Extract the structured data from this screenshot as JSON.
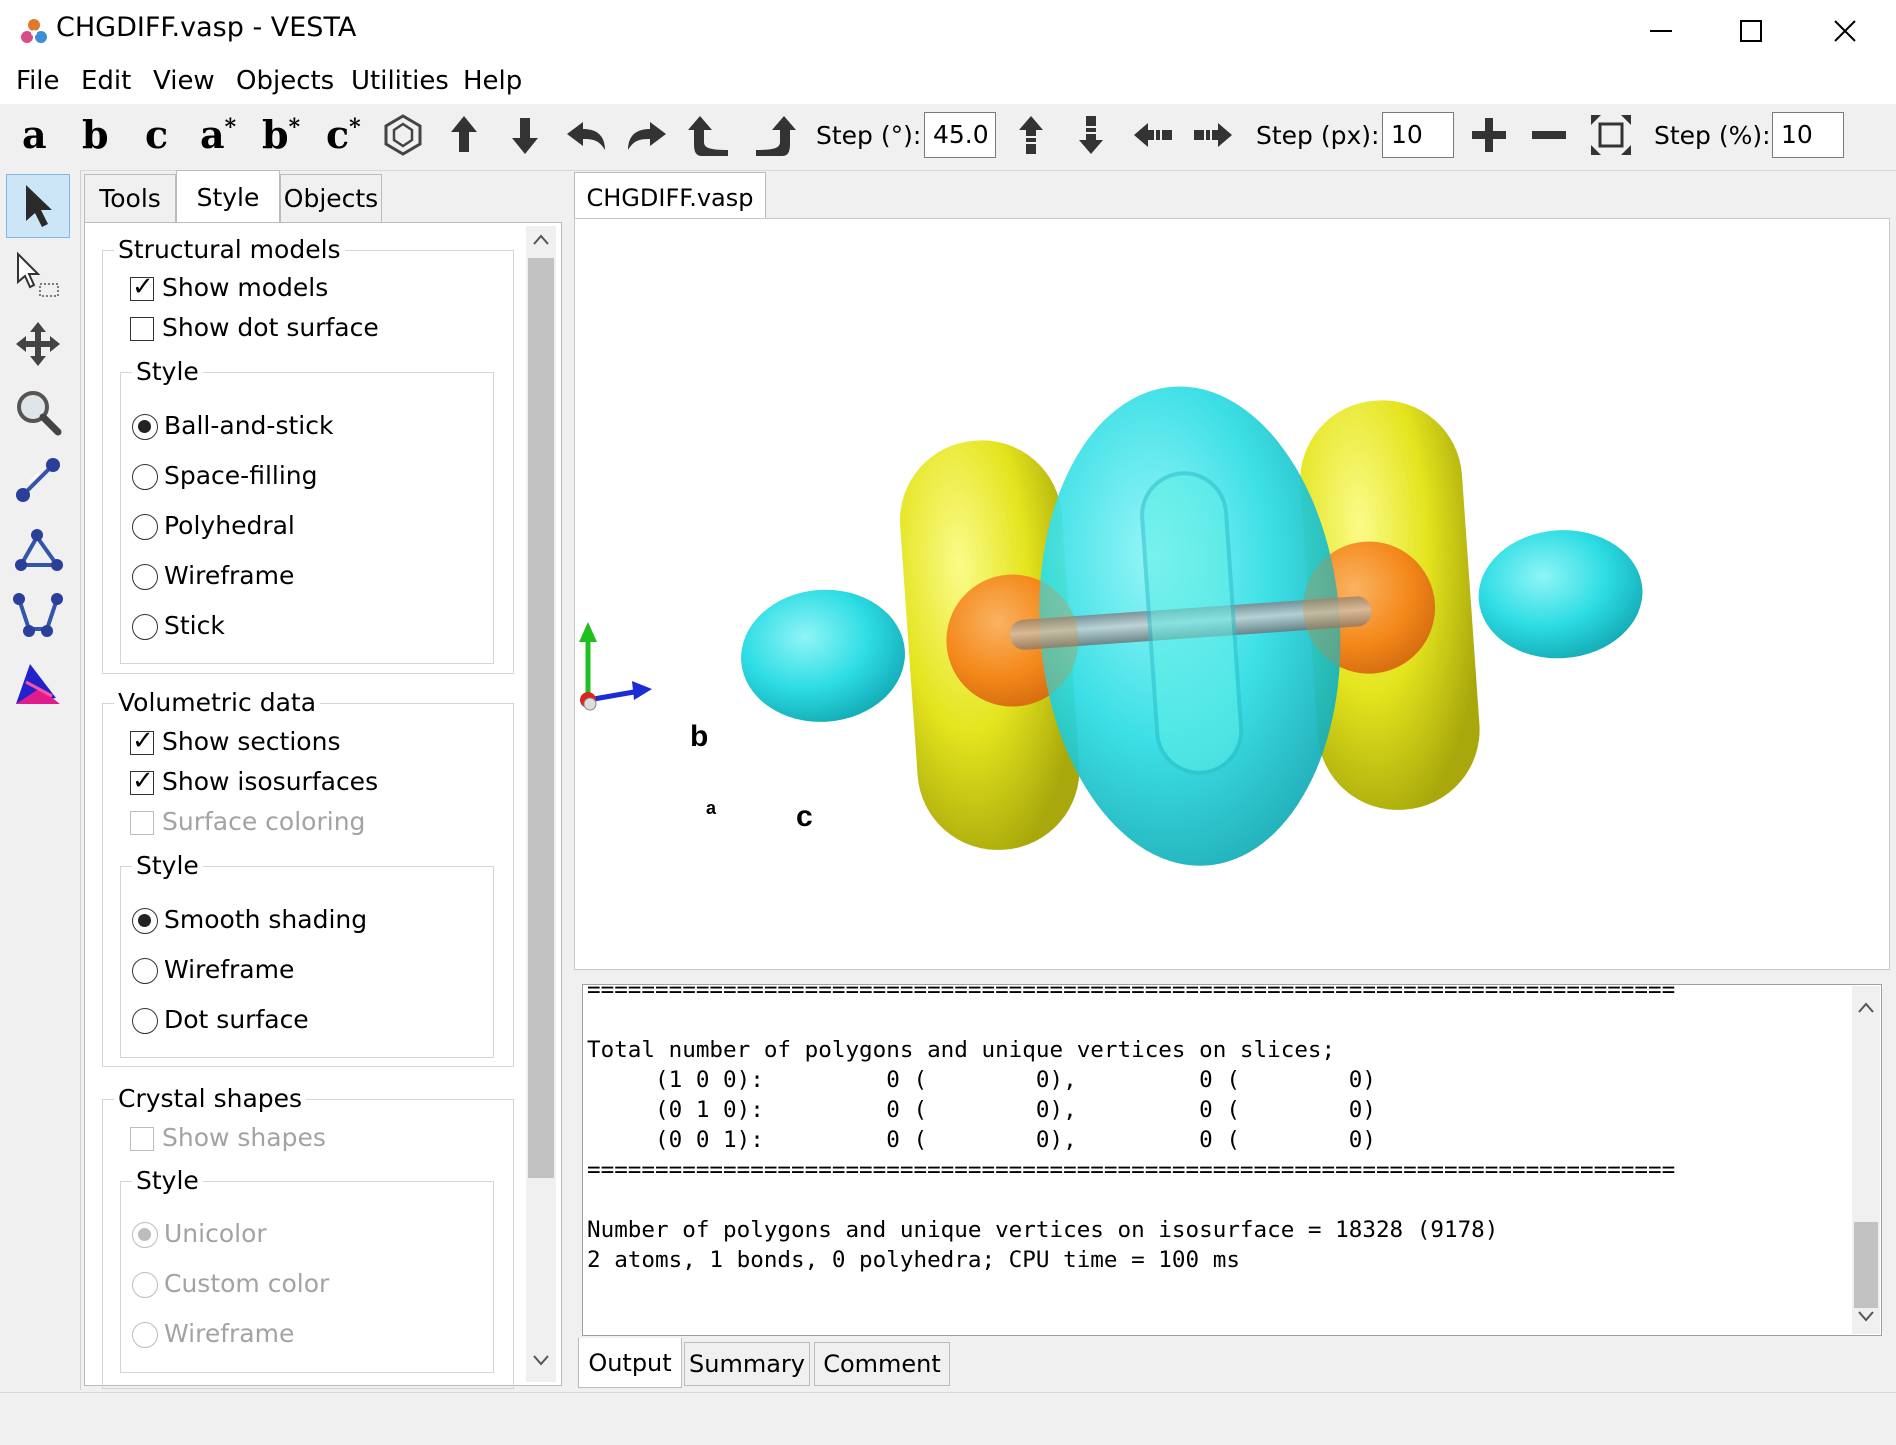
{
  "window": {
    "title": "CHGDIFF.vasp - VESTA"
  },
  "menu": [
    "File",
    "Edit",
    "View",
    "Objects",
    "Utilities",
    "Help"
  ],
  "toolbar": {
    "axes": [
      {
        "base": "a",
        "sup": ""
      },
      {
        "base": "b",
        "sup": ""
      },
      {
        "base": "c",
        "sup": ""
      },
      {
        "base": "a",
        "sup": "*"
      },
      {
        "base": "b",
        "sup": "*"
      },
      {
        "base": "c",
        "sup": "*"
      }
    ],
    "step_deg_label": "Step (°):",
    "step_deg_value": "45.0",
    "step_px_label": "Step (px):",
    "step_px_value": "10",
    "step_pct_label": "Step (%):",
    "step_pct_value": "10"
  },
  "panel": {
    "tabs": [
      "Tools",
      "Style",
      "Objects"
    ],
    "structural": {
      "title": "Structural models",
      "show_models": "Show models",
      "show_dot_surface": "Show dot surface",
      "style_title": "Style",
      "styles": [
        "Ball-and-stick",
        "Space-filling",
        "Polyhedral",
        "Wireframe",
        "Stick"
      ]
    },
    "volumetric": {
      "title": "Volumetric data",
      "show_sections": "Show sections",
      "show_isosurfaces": "Show isosurfaces",
      "surface_coloring": "Surface coloring",
      "style_title": "Style",
      "styles": [
        "Smooth shading",
        "Wireframe",
        "Dot surface"
      ]
    },
    "crystal": {
      "title": "Crystal shapes",
      "show_shapes": "Show shapes",
      "style_title": "Style",
      "styles": [
        "Unicolor",
        "Custom color",
        "Wireframe"
      ]
    }
  },
  "viewer": {
    "tab": "CHGDIFF.vasp",
    "axis_b": "b",
    "axis_c": "c",
    "axis_a": "a",
    "colors": {
      "yellow": "#e6e61e",
      "cyan": "#2ee0e6",
      "atom": "#f5891a",
      "bond": "#9aa3a8"
    }
  },
  "output": {
    "lines": [
      "================================================================================",
      "",
      "Total number of polygons and unique vertices on slices;",
      "     (1 0 0):         0 (        0),         0 (        0)",
      "     (0 1 0):         0 (        0),         0 (        0)",
      "     (0 0 1):         0 (        0),         0 (        0)",
      "================================================================================",
      "",
      "Number of polygons and unique vertices on isosurface = 18328 (9178)",
      "2 atoms, 1 bonds, 0 polyhedra; CPU time = 100 ms"
    ],
    "tabs": [
      "Output",
      "Summary",
      "Comment"
    ]
  }
}
